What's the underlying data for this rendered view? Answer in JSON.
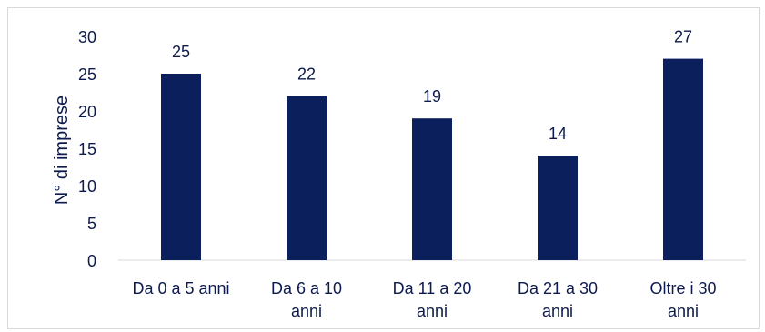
{
  "chart_data": {
    "type": "bar",
    "title": "",
    "xlabel": "",
    "ylabel": "N° di imprese",
    "categories": [
      [
        "Da 0 a 5 anni"
      ],
      [
        "Da 6 a 10",
        "anni"
      ],
      [
        "Da 11 a 20",
        "anni"
      ],
      [
        "Da 21 a 30",
        "anni"
      ],
      [
        "Oltre i 30",
        "anni"
      ]
    ],
    "values": [
      25,
      22,
      19,
      14,
      27
    ],
    "data_labels": [
      "25",
      "22",
      "19",
      "14",
      "27"
    ],
    "yticks": [
      "0",
      "5",
      "10",
      "15",
      "20",
      "25",
      "30"
    ],
    "ylim": [
      0,
      30
    ],
    "grid": false,
    "legend": "none",
    "colors": {
      "bar": "#0a1f5c",
      "text": "#0d1a4d",
      "axis": "#d9d9d9"
    }
  }
}
